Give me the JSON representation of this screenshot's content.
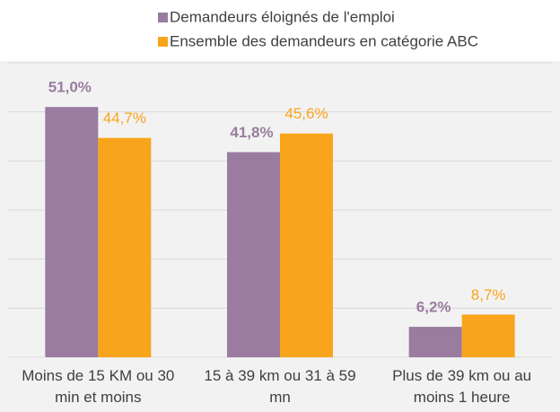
{
  "chart_data": {
    "type": "bar",
    "categories": [
      "Moins de 15 KM ou 30 min et moins",
      "15 à 39 km ou 31 à 59 mn",
      "Plus de 39 km ou au moins 1 heure"
    ],
    "series": [
      {
        "name": "Demandeurs éloignés de l'emploi",
        "color": "#9a7ca0",
        "values": [
          51.0,
          41.8,
          6.2
        ],
        "value_labels": [
          "51,0%",
          "41,8%",
          "6,2%"
        ]
      },
      {
        "name": "Ensemble des demandeurs en catégorie ABC",
        "color": "#f9a51b",
        "values": [
          44.7,
          45.6,
          8.7
        ],
        "value_labels": [
          "44,7%",
          "45,6%",
          "8,7%"
        ]
      }
    ],
    "ylim": [
      0,
      60
    ],
    "yticks": [
      0,
      10,
      20,
      30,
      40,
      50,
      60
    ],
    "grid": true
  }
}
